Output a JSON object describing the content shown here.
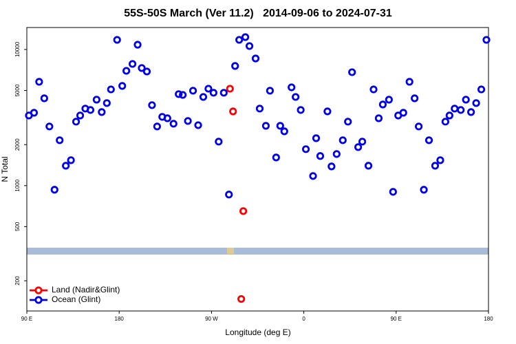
{
  "chart_data": {
    "type": "scatter",
    "title": "55S-50S March (Ver 11.2)   2014-09-06 to 2024-07-31",
    "x_label": "Longitude (deg E)",
    "y_label": "N Total",
    "xlim": [
      90,
      540
    ],
    "xticks": [
      {
        "value": 90,
        "label": "90 E"
      },
      {
        "value": 180,
        "label": "180"
      },
      {
        "value": 270,
        "label": "90 W"
      },
      {
        "value": 360,
        "label": "0"
      },
      {
        "value": 450,
        "label": "90 E"
      },
      {
        "value": 540,
        "label": "180"
      }
    ],
    "ylim": [
      120,
      14500
    ],
    "yticks": [
      200,
      500,
      1000,
      2000,
      5000,
      10000
    ],
    "log_y": true,
    "legend_position": "bottom-left",
    "series": [
      {
        "name": "Land (Nadir&Glint)",
        "color": "#ff0000",
        "x": [
          288,
          291,
          301,
          299
        ],
        "values": [
          5150,
          3510,
          650,
          147
        ]
      },
      {
        "name": "Ocean (Glint)",
        "color": "#0000ee",
        "x": [
          92,
          97,
          102,
          107,
          112,
          117,
          122,
          128,
          133,
          138,
          142,
          147,
          152,
          158,
          163,
          168,
          172,
          178,
          183,
          187,
          193,
          198,
          202,
          207,
          212,
          217,
          222,
          227,
          233,
          238,
          242,
          247,
          252,
          257,
          262,
          267,
          272,
          277,
          282,
          287,
          293,
          297,
          303,
          307,
          313,
          317,
          323,
          327,
          333,
          337,
          341,
          348,
          352,
          357,
          362,
          369,
          372,
          376,
          383,
          387,
          392,
          398,
          403,
          407,
          413,
          417,
          423,
          428,
          433,
          437,
          443,
          447,
          452,
          457,
          463,
          468,
          472,
          477,
          482,
          488,
          493,
          498,
          502,
          507,
          513,
          518,
          523,
          528,
          533,
          538
        ],
        "values": [
          3275,
          3430,
          5790,
          4380,
          2720,
          933,
          2155,
          1400,
          1537,
          2950,
          3275,
          3680,
          3595,
          4280,
          3470,
          4040,
          5090,
          11770,
          5400,
          6970,
          7830,
          10840,
          7310,
          6890,
          3900,
          2720,
          3200,
          3126,
          2850,
          4700,
          4640,
          2985,
          4980,
          2780,
          4480,
          5150,
          4810,
          2105,
          4810,
          860,
          7570,
          11770,
          12330,
          10600,
          8590,
          3680,
          2750,
          4980,
          1610,
          2750,
          2505,
          5270,
          4480,
          3595,
          1853,
          1177,
          2230,
          1650,
          3510,
          1384,
          1707,
          2155,
          2950,
          6810,
          1918,
          2105,
          1400,
          5090,
          3126,
          3945,
          4280,
          900,
          3275,
          3430,
          5790,
          4380,
          2720,
          933,
          2155,
          1400,
          1537,
          2950,
          3275,
          3680,
          3595,
          4280,
          3470,
          4040,
          5090,
          11770
        ]
      }
    ]
  }
}
